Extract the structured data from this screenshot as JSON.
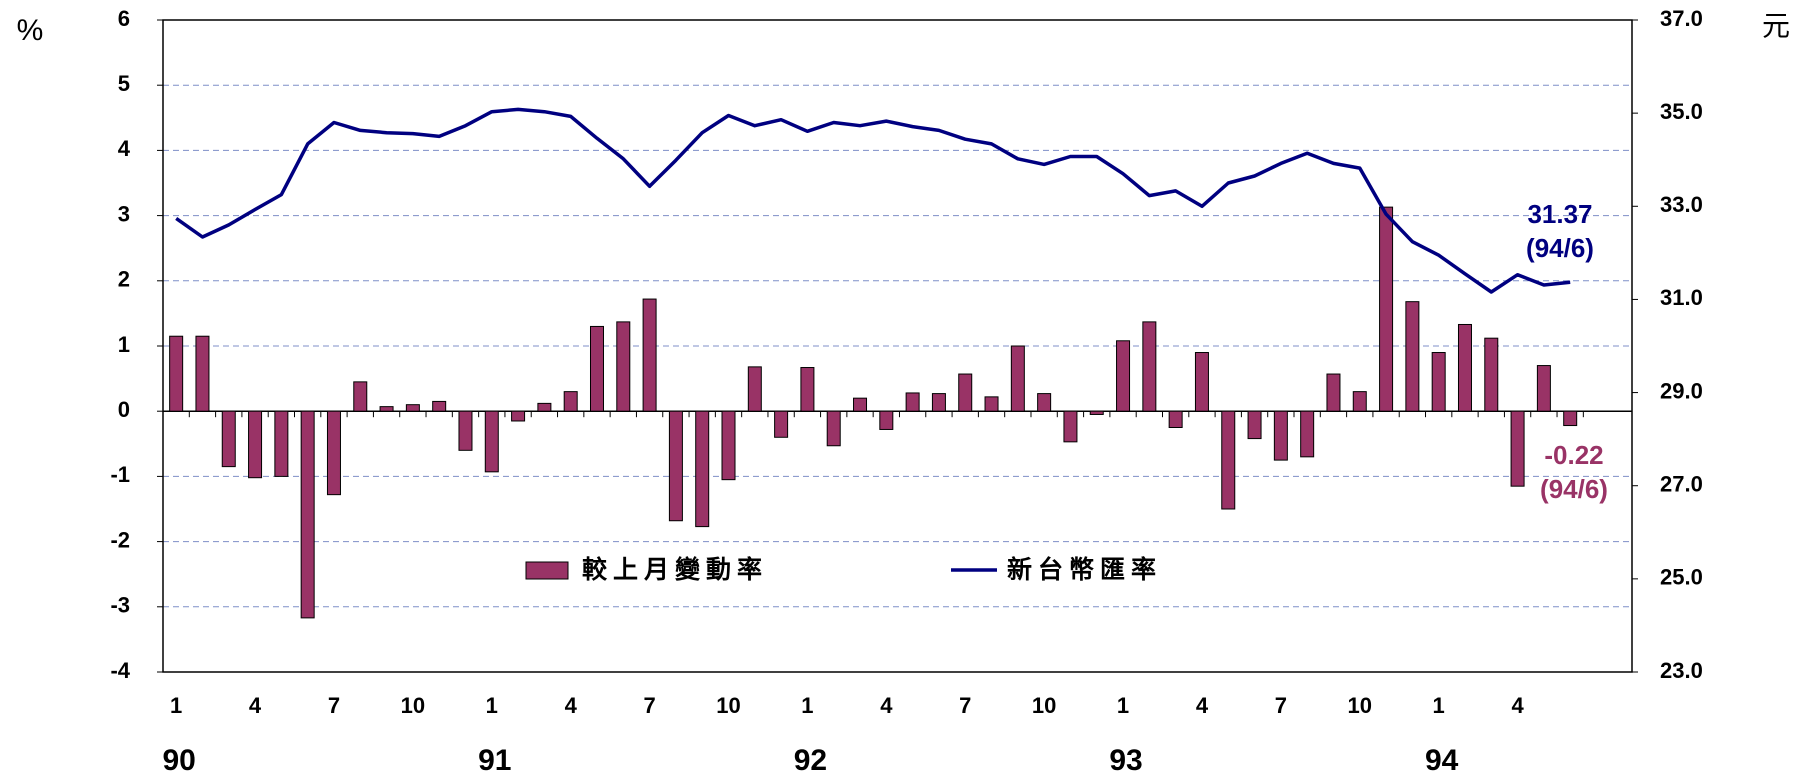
{
  "chart_data": {
    "type": "bar_line",
    "y_label": "%",
    "y2_label": "元",
    "categories": [
      "1",
      null,
      null,
      "4",
      null,
      null,
      "7",
      null,
      null,
      "10",
      null,
      null,
      "1",
      null,
      null,
      "4",
      null,
      null,
      "7",
      null,
      null,
      "10",
      null,
      null,
      "1",
      null,
      null,
      "4",
      null,
      null,
      "7",
      null,
      null,
      "10",
      null,
      null,
      "1",
      null,
      null,
      "4",
      null,
      null,
      "7",
      null,
      null,
      "10",
      null,
      null,
      "1",
      null,
      null,
      "4",
      null,
      null
    ],
    "year_labels": [
      "90",
      "91",
      "92",
      "93",
      "94"
    ],
    "series": [
      {
        "name": "較上月變動率",
        "type": "bar",
        "color": "#993366",
        "values": [
          1.15,
          1.15,
          -0.85,
          -1.02,
          -1.0,
          -3.17,
          -1.28,
          0.45,
          0.07,
          0.1,
          0.15,
          -0.6,
          -0.93,
          -0.15,
          0.12,
          0.3,
          1.3,
          1.37,
          1.72,
          -1.68,
          -1.77,
          -1.05,
          0.68,
          -0.4,
          0.67,
          -0.53,
          0.2,
          -0.28,
          0.28,
          0.27,
          0.57,
          0.22,
          1.0,
          0.27,
          -0.47,
          -0.05,
          1.08,
          1.37,
          -0.25,
          0.9,
          -1.5,
          -0.42,
          -0.75,
          -0.7,
          0.57,
          0.3,
          3.13,
          1.68,
          0.9,
          1.33,
          1.12,
          -1.15,
          0.7,
          -0.22
        ]
      },
      {
        "name": "新台幣匯率",
        "type": "line",
        "axis": "y2",
        "color": "#000080",
        "values": [
          32.74,
          32.34,
          32.6,
          32.93,
          33.25,
          34.34,
          34.8,
          34.63,
          34.58,
          34.56,
          34.5,
          34.73,
          35.03,
          35.08,
          35.03,
          34.93,
          34.46,
          34.02,
          33.43,
          33.99,
          34.58,
          34.95,
          34.73,
          34.86,
          34.61,
          34.8,
          34.73,
          34.83,
          34.71,
          34.63,
          34.44,
          34.34,
          34.02,
          33.9,
          34.07,
          34.07,
          33.7,
          33.23,
          33.33,
          33.0,
          33.5,
          33.65,
          33.92,
          34.14,
          33.92,
          33.82,
          32.83,
          32.24,
          31.95,
          31.55,
          31.16,
          31.53,
          31.31,
          31.37
        ]
      }
    ],
    "ylim": [
      -4,
      6
    ],
    "yticks": [
      -4,
      -3,
      -2,
      -1,
      0,
      1,
      2,
      3,
      4,
      5,
      6
    ],
    "y2lim": [
      23,
      37
    ],
    "y2ticks": [
      {
        "value": 23,
        "label": "23.0"
      },
      {
        "value": 25,
        "label": "25.0"
      },
      {
        "value": 27,
        "label": "27.0"
      },
      {
        "value": 29,
        "label": "29.0"
      },
      {
        "value": 31,
        "label": "31.0"
      },
      {
        "value": 33,
        "label": "33.0"
      },
      {
        "value": 35,
        "label": "35.0"
      },
      {
        "value": 37,
        "label": "37.0"
      }
    ],
    "grid": true,
    "annotations": [
      {
        "lines": [
          "31.37",
          "(94/6)"
        ],
        "color": "#000080"
      },
      {
        "lines": [
          "-0.22",
          "(94/6)"
        ],
        "color": "#993366"
      }
    ]
  }
}
